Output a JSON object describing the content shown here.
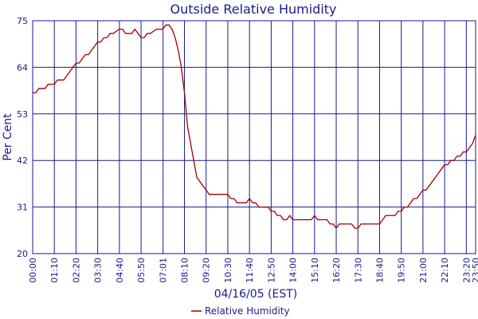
{
  "colors": {
    "axis": "#1a1a8c",
    "series": "#a00000",
    "background": "#ffffff"
  },
  "chart_data": {
    "type": "line",
    "title": "Outside Relative Humidity",
    "xlabel": "04/16/05 (EST)",
    "ylabel": "Per Cent",
    "xlim": [
      "00:00",
      "23:50"
    ],
    "ylim": [
      20,
      75
    ],
    "yticks": [
      20,
      31,
      42,
      53,
      64,
      75
    ],
    "xticks": [
      "00:00",
      "01:10",
      "02:20",
      "03:30",
      "04:40",
      "05:50",
      "07:01",
      "08:10",
      "09:20",
      "10:30",
      "11:40",
      "12:50",
      "14:00",
      "15:10",
      "16:20",
      "17:30",
      "18:40",
      "19:50",
      "21:00",
      "22:10",
      "23:20",
      "23:50"
    ],
    "grid": true,
    "legend_position": "bottom-center",
    "series": [
      {
        "name": "Relative Humidity",
        "x": [
          "00:00",
          "00:10",
          "00:20",
          "00:30",
          "00:40",
          "00:50",
          "01:00",
          "01:10",
          "01:20",
          "01:30",
          "01:40",
          "01:50",
          "02:00",
          "02:10",
          "02:20",
          "02:30",
          "02:40",
          "02:50",
          "03:00",
          "03:10",
          "03:20",
          "03:30",
          "03:40",
          "03:50",
          "04:00",
          "04:10",
          "04:20",
          "04:30",
          "04:40",
          "04:50",
          "05:00",
          "05:10",
          "05:20",
          "05:30",
          "05:40",
          "05:50",
          "06:00",
          "06:10",
          "06:20",
          "06:30",
          "06:40",
          "06:50",
          "07:00",
          "07:10",
          "07:20",
          "07:30",
          "07:40",
          "07:50",
          "08:00",
          "08:10",
          "08:20",
          "08:30",
          "08:40",
          "08:50",
          "09:00",
          "09:10",
          "09:20",
          "09:30",
          "09:40",
          "09:50",
          "10:00",
          "10:10",
          "10:20",
          "10:30",
          "10:40",
          "10:50",
          "11:00",
          "11:10",
          "11:20",
          "11:30",
          "11:40",
          "11:50",
          "12:00",
          "12:10",
          "12:20",
          "12:30",
          "12:40",
          "12:50",
          "13:00",
          "13:10",
          "13:20",
          "13:30",
          "13:40",
          "13:50",
          "14:00",
          "14:10",
          "14:20",
          "14:30",
          "14:40",
          "14:50",
          "15:00",
          "15:10",
          "15:20",
          "15:30",
          "15:40",
          "15:50",
          "16:00",
          "16:10",
          "16:20",
          "16:30",
          "16:40",
          "16:50",
          "17:00",
          "17:10",
          "17:20",
          "17:30",
          "17:40",
          "17:50",
          "18:00",
          "18:10",
          "18:20",
          "18:30",
          "18:40",
          "18:50",
          "19:00",
          "19:10",
          "19:20",
          "19:30",
          "19:40",
          "19:50",
          "20:00",
          "20:10",
          "20:20",
          "20:30",
          "20:40",
          "20:50",
          "21:00",
          "21:10",
          "21:20",
          "21:30",
          "21:40",
          "21:50",
          "22:00",
          "22:10",
          "22:20",
          "22:30",
          "22:40",
          "22:50",
          "23:00",
          "23:10",
          "23:20",
          "23:30",
          "23:40",
          "23:50"
        ],
        "values": [
          58,
          58,
          59,
          59,
          59,
          60,
          60,
          60,
          61,
          61,
          61,
          62,
          63,
          64,
          65,
          65,
          66,
          67,
          67,
          68,
          69,
          70,
          70,
          71,
          71,
          72,
          72,
          72.5,
          73,
          73,
          72,
          72,
          72,
          73,
          72,
          71,
          71,
          72,
          72,
          72.5,
          73,
          73,
          73,
          74,
          74,
          73,
          71,
          68,
          64,
          58,
          50,
          46,
          42,
          38,
          37,
          36,
          35,
          34,
          34,
          34,
          34,
          34,
          34,
          34,
          33,
          33,
          32,
          32,
          32,
          32,
          33,
          32,
          32,
          31,
          31,
          31,
          31,
          30,
          30,
          29,
          29,
          28,
          28,
          29,
          28,
          28,
          28,
          28,
          28,
          28,
          28,
          29,
          28,
          28,
          28,
          28,
          27,
          27,
          26,
          27,
          27,
          27,
          27,
          27,
          26,
          26,
          27,
          27,
          27,
          27,
          27,
          27,
          27,
          28,
          29,
          29,
          29,
          29,
          30,
          30,
          31,
          31,
          32,
          33,
          33,
          34,
          35,
          35,
          36,
          37,
          38,
          39,
          40,
          41,
          41,
          42,
          42,
          43,
          43,
          44,
          44,
          45,
          46,
          48
        ]
      }
    ]
  }
}
